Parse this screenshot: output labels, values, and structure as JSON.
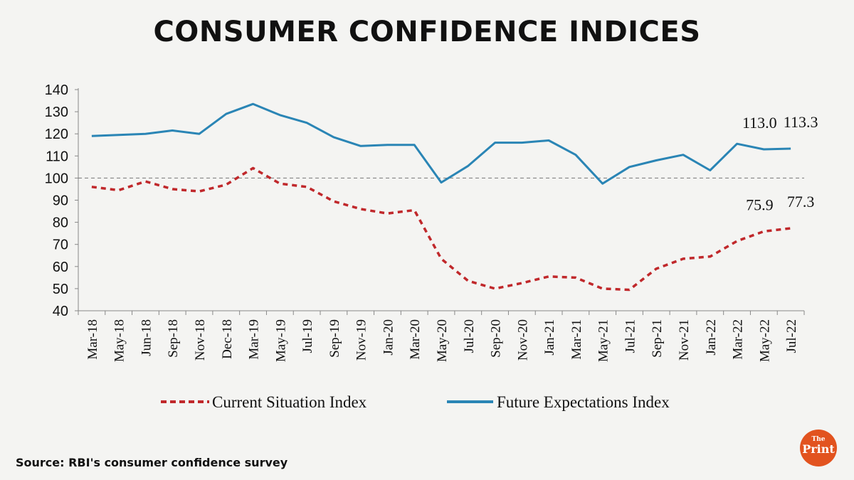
{
  "title": "CONSUMER CONFIDENCE INDICES",
  "source": "Source: RBI's consumer confidence survey",
  "logo": {
    "the": "The",
    "print": "Print"
  },
  "colors": {
    "current": "#c0282b",
    "future": "#2a85b5",
    "reference": "#777777",
    "logo": "#e2531f"
  },
  "chart_data": {
    "type": "line",
    "title": "CONSUMER CONFIDENCE INDICES",
    "xlabel": "",
    "ylabel": "",
    "ylim": [
      40,
      140
    ],
    "yticks": [
      40,
      50,
      60,
      70,
      80,
      90,
      100,
      110,
      120,
      130,
      140
    ],
    "categories": [
      "Mar-18",
      "May-18",
      "Jun-18",
      "Sep-18",
      "Nov-18",
      "Dec-18",
      "Mar-19",
      "May-19",
      "Jul-19",
      "Sep-19",
      "Nov-19",
      "Jan-20",
      "Mar-20",
      "May-20",
      "Jul-20",
      "Sep-20",
      "Nov-20",
      "Jan-21",
      "Mar-21",
      "May-21",
      "Jul-21",
      "Sep-21",
      "Nov-21",
      "Jan-22",
      "Mar-22",
      "May-22",
      "Jul-22"
    ],
    "reference_line": 100,
    "grid": false,
    "legend_position": "bottom",
    "series": [
      {
        "name": "Current Situation Index",
        "style": "dashed",
        "values": [
          96,
          94.5,
          98.5,
          95,
          94,
          97,
          104.5,
          97.5,
          96,
          89.5,
          86,
          84,
          85.5,
          63.5,
          53.5,
          50,
          52.5,
          55.5,
          55,
          50,
          49.5,
          59,
          63.5,
          64.5,
          71.5,
          75.9,
          77.3
        ]
      },
      {
        "name": "Future Expectations Index",
        "style": "solid",
        "values": [
          119,
          119.5,
          120,
          121.5,
          120,
          129,
          133.5,
          128.5,
          125,
          118.5,
          114.5,
          115,
          115,
          98,
          105.5,
          116,
          116,
          117,
          110.5,
          97.5,
          105,
          108,
          110.5,
          103.5,
          115.5,
          113.0,
          113.3
        ]
      }
    ],
    "annotations": [
      {
        "series": "Future Expectations Index",
        "category": "May-22",
        "label": "113.0"
      },
      {
        "series": "Future Expectations Index",
        "category": "Jul-22",
        "label": "113.3"
      },
      {
        "series": "Current Situation Index",
        "category": "May-22",
        "label": "75.9"
      },
      {
        "series": "Current Situation Index",
        "category": "Jul-22",
        "label": "77.3"
      }
    ]
  }
}
